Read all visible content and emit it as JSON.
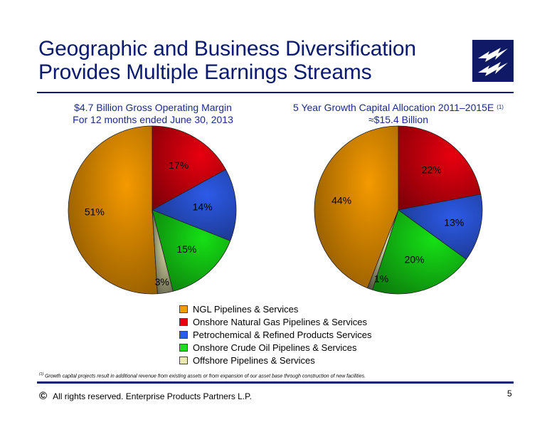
{
  "title_line1": "Geographic and Business Diversification",
  "title_line2": "Provides Multiple Earnings Streams",
  "logo_icon": "lightning-bolt-logo",
  "colors": {
    "brand_navy": "#0a1a6e",
    "chart_title": "#1b2a8c",
    "ngl": "#f59a00",
    "onshore_gas": "#e8000f",
    "petrochemical": "#2d5be8",
    "crude_oil": "#16e016",
    "offshore": "#e8e8b0"
  },
  "chart_data": [
    {
      "type": "pie",
      "title_line1": "$4.7 Billion Gross Operating Margin",
      "title_line2": "For 12 months ended June 30, 2013",
      "slices": [
        {
          "label": "NGL Pipelines & Services",
          "value": 51,
          "text": "51%"
        },
        {
          "label": "Onshore Natural Gas Pipelines & Services",
          "value": 17,
          "text": "17%"
        },
        {
          "label": "Petrochemical & Refined Products Services",
          "value": 14,
          "text": "14%"
        },
        {
          "label": "Onshore Crude Oil Pipelines & Services",
          "value": 15,
          "text": "15%"
        },
        {
          "label": "Offshore Pipelines & Services",
          "value": 3,
          "text": "3%"
        }
      ]
    },
    {
      "type": "pie",
      "title_line1": "5 Year Growth Capital Allocation 2011–2015E",
      "title_note": "(1)",
      "title_line2": "≈$15.4 Billion",
      "slices": [
        {
          "label": "NGL Pipelines & Services",
          "value": 44,
          "text": "44%"
        },
        {
          "label": "Onshore Natural Gas Pipelines & Services",
          "value": 22,
          "text": "22%"
        },
        {
          "label": "Petrochemical & Refined Products Services",
          "value": 13,
          "text": "13%"
        },
        {
          "label": "Onshore Crude Oil Pipelines & Services",
          "value": 20,
          "text": "20%"
        },
        {
          "label": "Offshore Pipelines & Services",
          "value": 1,
          "text": "1%"
        }
      ]
    }
  ],
  "legend": [
    {
      "label": "NGL Pipelines & Services",
      "color": "#f59a00"
    },
    {
      "label": "Onshore Natural Gas Pipelines & Services",
      "color": "#e8000f"
    },
    {
      "label": "Petrochemical & Refined Products Services",
      "color": "#2d5be8"
    },
    {
      "label": "Onshore Crude Oil Pipelines & Services",
      "color": "#16e016"
    },
    {
      "label": "Offshore Pipelines & Services",
      "color": "#e8e8b0"
    }
  ],
  "footnote_marker": "(1)",
  "footnote": "Growth capital projects result in additional revenue from existing assets or from expansion of our asset base through construction of new facilities.",
  "copyright_symbol": "©",
  "copyright": "All rights reserved. Enterprise Products Partners L.P.",
  "page_number": "5"
}
